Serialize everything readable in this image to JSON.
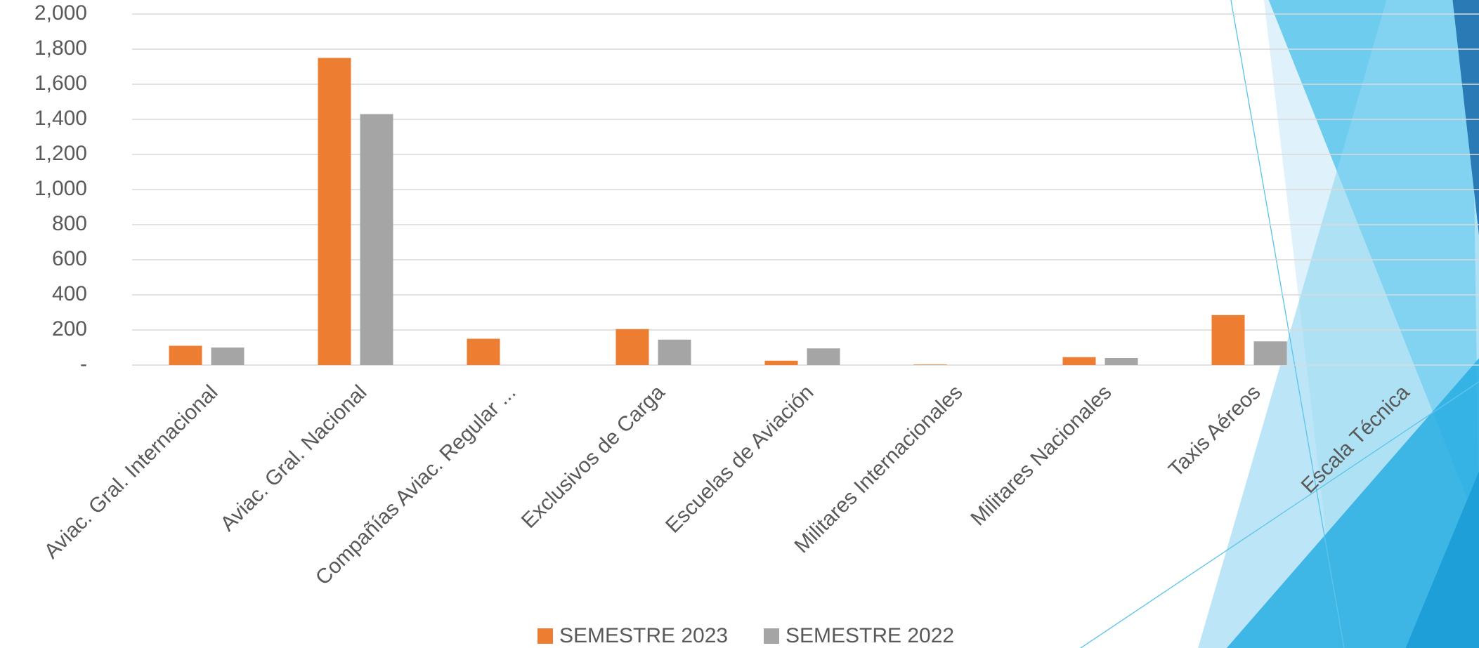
{
  "chart_data": {
    "type": "bar",
    "categories": [
      "Aviac. Gral. Internacional",
      "Aviac. Gral. Nacional",
      "Compañías Aviac. Regular ...",
      "Exclusivos de Carga",
      "Escuelas de Aviación",
      "Militares Internacionales",
      "Militares Nacionales",
      "Taxis Aéreos",
      "Escala Técnica"
    ],
    "series": [
      {
        "name": "SEMESTRE 2023",
        "color": "#ed7d31",
        "values": [
          110,
          1750,
          150,
          205,
          25,
          3,
          45,
          285,
          0
        ]
      },
      {
        "name": "SEMESTRE 2022",
        "color": "#a5a5a5",
        "values": [
          100,
          1430,
          0,
          145,
          95,
          0,
          40,
          135,
          0
        ]
      }
    ],
    "ylim": [
      0,
      2000
    ],
    "yticks": [
      {
        "value": 0,
        "label": "-"
      },
      200,
      400,
      600,
      800,
      {
        "value": 1000,
        "label": "1,000"
      },
      {
        "value": 1200,
        "label": "1,200"
      },
      {
        "value": 1400,
        "label": "1,400"
      },
      {
        "value": 1600,
        "label": "1,600"
      },
      {
        "value": 1800,
        "label": "1,800"
      },
      {
        "value": 2000,
        "label": "2,000"
      }
    ],
    "grid": true,
    "legend": "bottom"
  }
}
